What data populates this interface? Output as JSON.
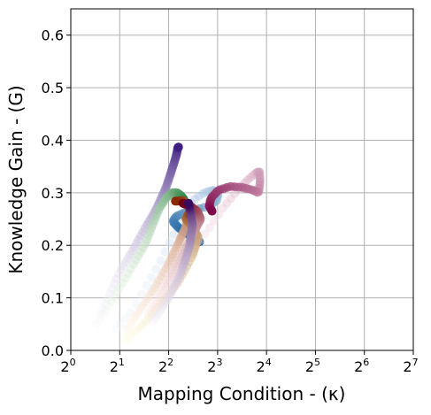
{
  "chart_data": {
    "type": "scatter",
    "xlabel": "Mapping Condition - (κ)",
    "ylabel": "Knowledge Gain - (G)",
    "x_scale": "log2",
    "xlim": [
      1,
      128
    ],
    "ylim": [
      0,
      0.65
    ],
    "grid": true,
    "x_tick_values": [
      1,
      2,
      4,
      8,
      16,
      32,
      64,
      128
    ],
    "x_tick_base": "2",
    "x_tick_exponents": [
      "0",
      "1",
      "2",
      "3",
      "4",
      "5",
      "6",
      "7"
    ],
    "y_ticks": [
      0.0,
      0.1,
      0.2,
      0.3,
      0.4,
      0.5,
      0.6
    ],
    "y_tick_labels": [
      "0.0",
      "0.1",
      "0.2",
      "0.3",
      "0.4",
      "0.5",
      "0.6"
    ],
    "series": [
      {
        "color_start": "#f2eff8",
        "color_end": "#3f1d80",
        "points": [
          [
            1.52,
            0.07
          ],
          [
            1.75,
            0.11
          ],
          [
            2.0,
            0.15
          ],
          [
            2.3,
            0.18
          ],
          [
            2.6,
            0.21
          ],
          [
            2.95,
            0.24
          ],
          [
            3.3,
            0.265
          ],
          [
            3.6,
            0.29
          ],
          [
            3.85,
            0.31
          ],
          [
            4.05,
            0.33
          ],
          [
            4.25,
            0.35
          ],
          [
            4.45,
            0.37
          ],
          [
            4.55,
            0.385
          ],
          [
            4.6,
            0.387
          ]
        ]
      },
      {
        "color_start": "#f1f9ee",
        "color_end": "#1f7a35",
        "points": [
          [
            1.45,
            0.05
          ],
          [
            1.75,
            0.09
          ],
          [
            2.1,
            0.13
          ],
          [
            2.5,
            0.17
          ],
          [
            2.9,
            0.205
          ],
          [
            3.2,
            0.24
          ],
          [
            3.5,
            0.27
          ],
          [
            3.85,
            0.29
          ],
          [
            4.2,
            0.3
          ],
          [
            4.5,
            0.3
          ],
          [
            4.75,
            0.295
          ],
          [
            4.95,
            0.288
          ],
          [
            5.05,
            0.28
          ]
        ]
      },
      {
        "color_start": "#eaf3fb",
        "color_end": "#08559a",
        "points": [
          [
            1.9,
            0.04
          ],
          [
            2.3,
            0.07
          ],
          [
            2.9,
            0.12
          ],
          [
            3.5,
            0.165
          ],
          [
            4.2,
            0.215
          ],
          [
            4.9,
            0.255
          ],
          [
            5.6,
            0.285
          ],
          [
            6.6,
            0.3
          ],
          [
            7.5,
            0.305
          ],
          [
            8.1,
            0.3
          ],
          [
            7.9,
            0.285
          ],
          [
            7.1,
            0.275
          ],
          [
            5.9,
            0.268
          ],
          [
            5.0,
            0.262
          ],
          [
            4.45,
            0.255
          ],
          [
            4.25,
            0.245
          ],
          [
            4.55,
            0.235
          ],
          [
            5.0,
            0.225
          ],
          [
            5.6,
            0.215
          ],
          [
            6.2,
            0.207
          ]
        ]
      },
      {
        "color_start": "#fdeef4",
        "color_end": "#7d0a4b",
        "points": [
          [
            3.3,
            0.11
          ],
          [
            4.3,
            0.15
          ],
          [
            5.6,
            0.19
          ],
          [
            7.0,
            0.23
          ],
          [
            8.6,
            0.27
          ],
          [
            10.3,
            0.3
          ],
          [
            12.0,
            0.322
          ],
          [
            13.8,
            0.338
          ],
          [
            14.5,
            0.34
          ],
          [
            14.6,
            0.32
          ],
          [
            14.3,
            0.3
          ],
          [
            13.2,
            0.305
          ],
          [
            11.5,
            0.31
          ],
          [
            9.6,
            0.312
          ],
          [
            8.1,
            0.305
          ],
          [
            7.3,
            0.29
          ],
          [
            7.1,
            0.275
          ],
          [
            7.4,
            0.265
          ]
        ]
      },
      {
        "color_start": "#fff0e2",
        "color_end": "#8a2a04",
        "points": [
          [
            2.2,
            0.04
          ],
          [
            2.7,
            0.08
          ],
          [
            3.3,
            0.12
          ],
          [
            4.0,
            0.165
          ],
          [
            4.6,
            0.205
          ],
          [
            5.1,
            0.235
          ],
          [
            5.4,
            0.26
          ],
          [
            5.3,
            0.275
          ],
          [
            4.9,
            0.285
          ],
          [
            4.4,
            0.284
          ]
        ]
      },
      {
        "color_start": "#fffbe0",
        "color_end": "#8a3a05",
        "points": [
          [
            2.15,
            0.02
          ],
          [
            2.8,
            0.05
          ],
          [
            3.6,
            0.09
          ],
          [
            4.6,
            0.13
          ],
          [
            5.6,
            0.18
          ],
          [
            6.1,
            0.215
          ],
          [
            5.6,
            0.235
          ],
          [
            5.1,
            0.25
          ],
          [
            5.3,
            0.26
          ],
          [
            5.55,
            0.255
          ]
        ]
      },
      {
        "color_start": "#fce8e8",
        "color_end": "#6e0018",
        "points": [
          [
            3.0,
            0.07
          ],
          [
            3.8,
            0.12
          ],
          [
            4.6,
            0.17
          ],
          [
            5.6,
            0.22
          ],
          [
            6.3,
            0.25
          ],
          [
            6.0,
            0.265
          ],
          [
            5.4,
            0.275
          ],
          [
            4.9,
            0.28
          ]
        ]
      },
      {
        "color_start": "#f3edf8",
        "color_end": "#3a0a5c",
        "points": [
          [
            3.2,
            0.055
          ],
          [
            4.0,
            0.1
          ],
          [
            4.8,
            0.15
          ],
          [
            5.4,
            0.2
          ],
          [
            5.6,
            0.24
          ],
          [
            5.45,
            0.265
          ],
          [
            5.3,
            0.28
          ]
        ]
      }
    ]
  }
}
